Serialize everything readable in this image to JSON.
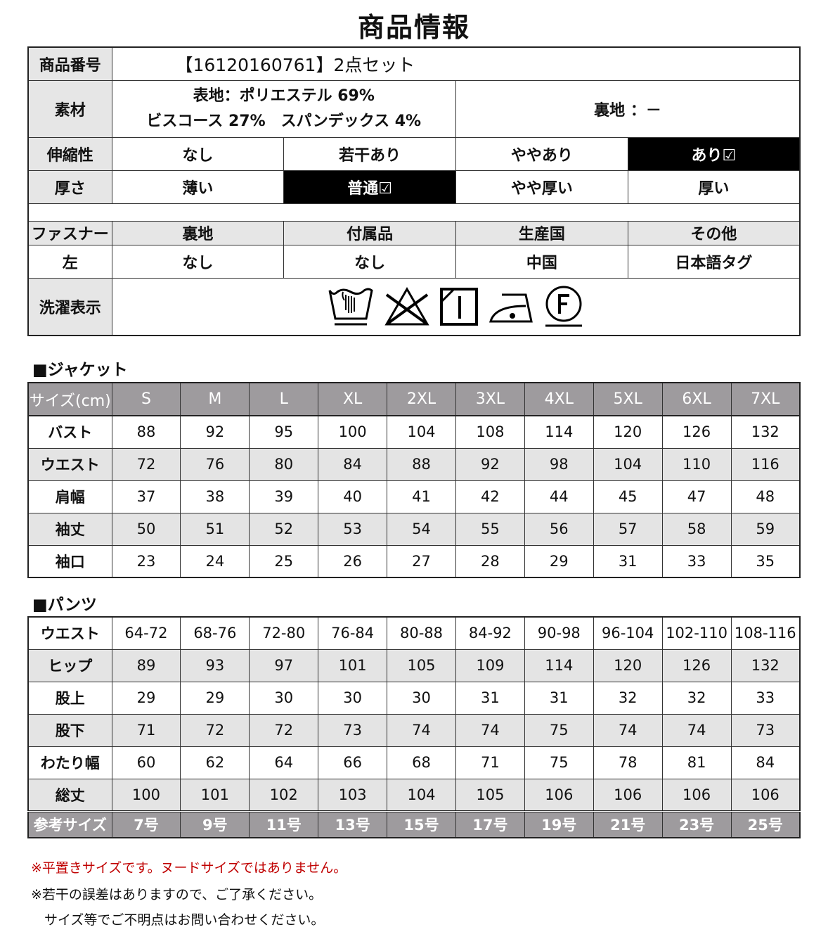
{
  "title": "商品情報",
  "info": {
    "product_no_label": "商品番号",
    "product_no": "【16120160761】2点セット",
    "material_label": "素材",
    "material_line1": "表地：ポリエステル 69%",
    "material_line2": "ビスコース 27%　スパンデックス 4%",
    "lining_material": "裏地 ：－",
    "stretch_label": "伸縮性",
    "stretch_options": [
      "なし",
      "若干あり",
      "ややあり",
      "あり☑"
    ],
    "stretch_selected": 3,
    "thickness_label": "厚さ",
    "thickness_options": [
      "薄い",
      "普通☑",
      "やや厚い",
      "厚い"
    ],
    "thickness_selected": 1,
    "attr_headers": [
      "ファスナー",
      "裏地",
      "付属品",
      "生産国",
      "その他"
    ],
    "attr_values": [
      "左",
      "なし",
      "なし",
      "中国",
      "日本語タグ"
    ],
    "wash_label": "洗濯表示",
    "wash_icons": [
      "hand-wash-icon",
      "no-bleach-icon",
      "drip-dry-shade-icon",
      "iron-low-icon",
      "dry-clean-f-icon"
    ]
  },
  "jacket": {
    "title": "■ジャケット",
    "header": [
      "サイズ(cm)",
      "S",
      "M",
      "L",
      "XL",
      "2XL",
      "3XL",
      "4XL",
      "5XL",
      "6XL",
      "7XL"
    ],
    "rows": [
      [
        "バスト",
        "88",
        "92",
        "95",
        "100",
        "104",
        "108",
        "114",
        "120",
        "126",
        "132"
      ],
      [
        "ウエスト",
        "72",
        "76",
        "80",
        "84",
        "88",
        "92",
        "98",
        "104",
        "110",
        "116"
      ],
      [
        "肩幅",
        "37",
        "38",
        "39",
        "40",
        "41",
        "42",
        "44",
        "45",
        "47",
        "48"
      ],
      [
        "袖丈",
        "50",
        "51",
        "52",
        "53",
        "54",
        "55",
        "56",
        "57",
        "58",
        "59"
      ],
      [
        "袖口",
        "23",
        "24",
        "25",
        "26",
        "27",
        "28",
        "29",
        "31",
        "33",
        "35"
      ]
    ]
  },
  "pants": {
    "title": "■パンツ",
    "rows": [
      [
        "ウエスト",
        "64-72",
        "68-76",
        "72-80",
        "76-84",
        "80-88",
        "84-92",
        "90-98",
        "96-104",
        "102-110",
        "108-116"
      ],
      [
        "ヒップ",
        "89",
        "93",
        "97",
        "101",
        "105",
        "109",
        "114",
        "120",
        "126",
        "132"
      ],
      [
        "股上",
        "29",
        "29",
        "30",
        "30",
        "30",
        "31",
        "31",
        "32",
        "32",
        "33"
      ],
      [
        "股下",
        "71",
        "72",
        "72",
        "73",
        "74",
        "74",
        "75",
        "74",
        "74",
        "73"
      ],
      [
        "わたり幅",
        "60",
        "62",
        "64",
        "66",
        "68",
        "71",
        "75",
        "78",
        "81",
        "84"
      ],
      [
        "総丈",
        "100",
        "101",
        "102",
        "103",
        "104",
        "105",
        "106",
        "106",
        "106",
        "106"
      ]
    ],
    "reference": [
      "参考サイズ",
      "7号",
      "9号",
      "11号",
      "13号",
      "15号",
      "17号",
      "19号",
      "21号",
      "23号",
      "25号"
    ]
  },
  "notes": [
    "※平置きサイズです。ヌードサイズではありません。",
    "※若干の誤差はありますので、ご了承ください。",
    "　サイズ等でご不明点はお問い合わせください。"
  ],
  "colors": {
    "header_gray": "#9e9b9e",
    "row_gray": "#e4e4e4",
    "note_red": "#c00000",
    "selected_bg": "#000000"
  }
}
